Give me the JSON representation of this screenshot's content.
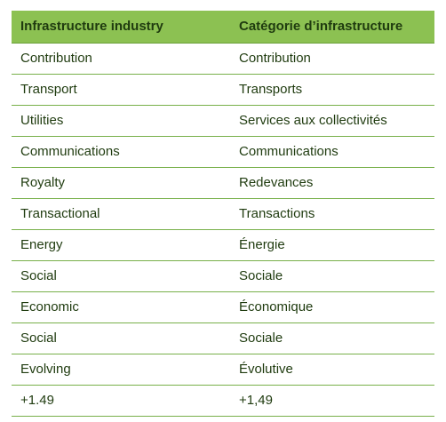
{
  "table": {
    "headers": {
      "english": "Infrastructure industry",
      "french": "Catégorie d’infrastructure"
    },
    "rows": [
      {
        "english": "Contribution",
        "french": "Contribution"
      },
      {
        "english": "Transport",
        "french": "Transports"
      },
      {
        "english": "Utilities",
        "french": "Services aux collectivités"
      },
      {
        "english": "Communications",
        "french": "Communications"
      },
      {
        "english": "Royalty",
        "french": "Redevances"
      },
      {
        "english": "Transactional",
        "french": "Transactions"
      },
      {
        "english": "Energy",
        "french": "Énergie"
      },
      {
        "english": "Social",
        "french": "Sociale"
      },
      {
        "english": "Economic",
        "french": "Économique"
      },
      {
        "english": "Social",
        "french": "Sociale"
      },
      {
        "english": "Evolving",
        "french": "Évolutive"
      },
      {
        "english": "+1.49",
        "french": "+1,49"
      }
    ]
  },
  "colors": {
    "header_background": "#8cc152",
    "row_border": "#78b04a",
    "text": "#1f3b0f"
  }
}
